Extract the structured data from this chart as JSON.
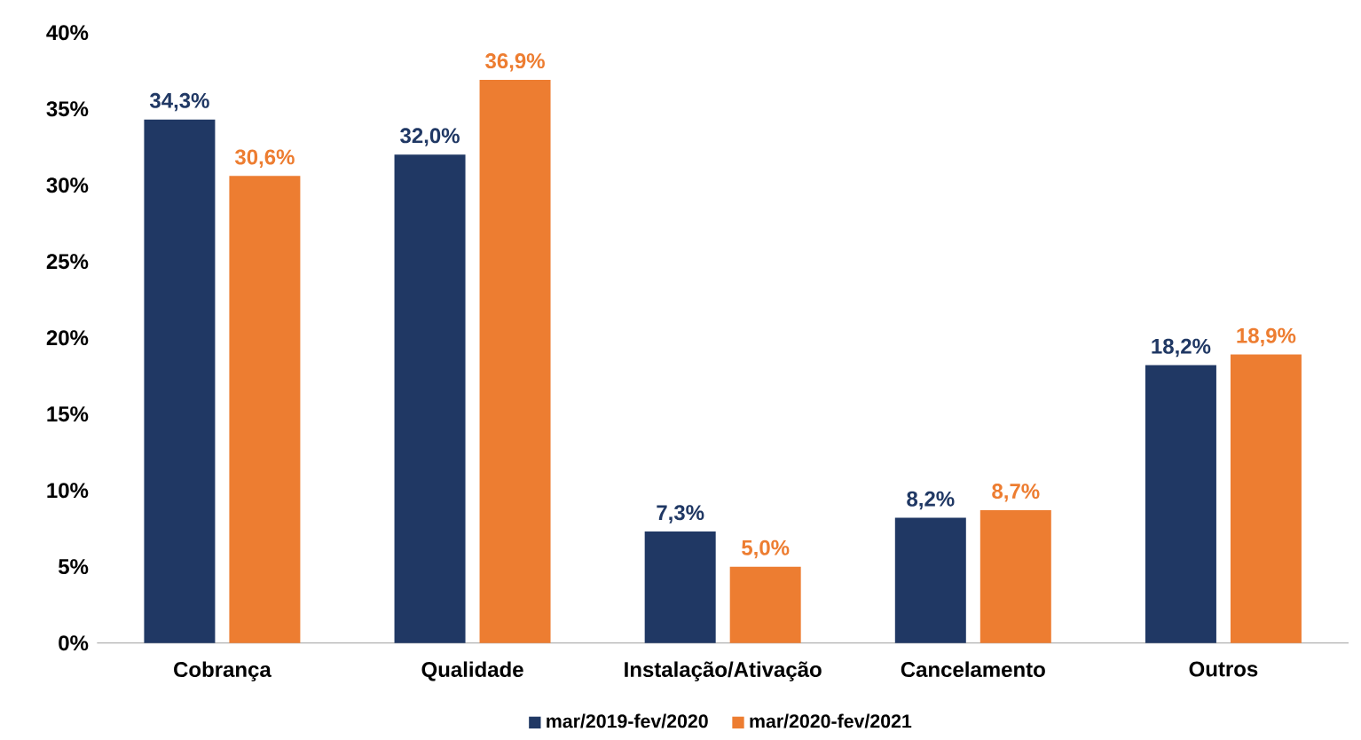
{
  "chart_data": {
    "type": "bar",
    "categories": [
      "Cobrança",
      "Qualidade",
      "Instalação/Ativação",
      "Cancelamento",
      "Outros"
    ],
    "series": [
      {
        "name": "mar/2019-fev/2020",
        "color": "#203864",
        "values": [
          34.3,
          32.0,
          7.3,
          8.2,
          18.2
        ],
        "value_labels": [
          "34,3%",
          "32,0%",
          "7,3%",
          "8,2%",
          "18,2%"
        ]
      },
      {
        "name": "mar/2020-fev/2021",
        "color": "#ed7d31",
        "values": [
          30.6,
          36.9,
          5.0,
          8.7,
          18.9
        ],
        "value_labels": [
          "30,6%",
          "36,9%",
          "5,0%",
          "8,7%",
          "18,9%"
        ]
      }
    ],
    "ylim": [
      0,
      40
    ],
    "yticks": [
      {
        "value": 0,
        "label": "0%"
      },
      {
        "value": 5,
        "label": "5%"
      },
      {
        "value": 10,
        "label": "10%"
      },
      {
        "value": 15,
        "label": "15%"
      },
      {
        "value": 20,
        "label": "20%"
      },
      {
        "value": 25,
        "label": "25%"
      },
      {
        "value": 30,
        "label": "30%"
      },
      {
        "value": 35,
        "label": "35%"
      },
      {
        "value": 40,
        "label": "40%"
      }
    ],
    "grid": false,
    "legend": "bottom"
  }
}
